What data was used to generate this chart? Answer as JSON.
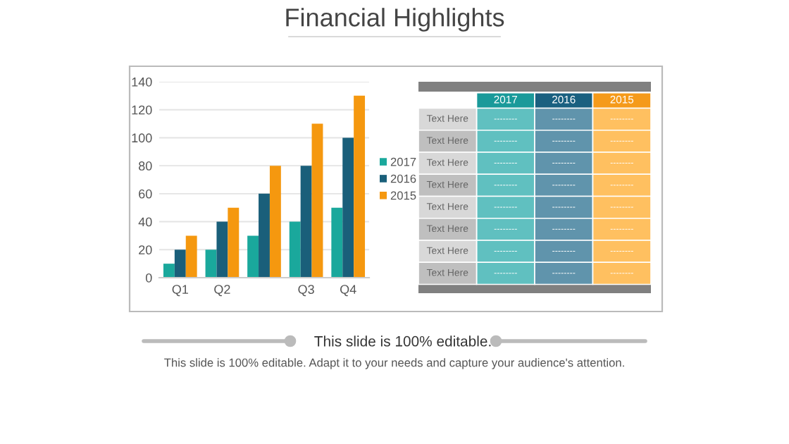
{
  "chart_data": [
    {
      "type": "bar",
      "title": "Financial Highlights",
      "categories": [
        "Q1",
        "Q2",
        null,
        "Q3",
        "Q4"
      ],
      "series": [
        {
          "name": "2017",
          "color": "#1aa89c",
          "values": [
            10,
            20,
            30,
            40,
            50
          ]
        },
        {
          "name": "2016",
          "color": "#1a5f7a",
          "values": [
            20,
            40,
            60,
            80,
            100
          ]
        },
        {
          "name": "2015",
          "color": "#f5980f",
          "values": [
            30,
            50,
            80,
            110,
            130
          ]
        }
      ],
      "ylim": [
        0,
        140
      ],
      "yticks": [
        0,
        20,
        40,
        60,
        80,
        100,
        120,
        140
      ],
      "grid": "y",
      "legend": "right",
      "annotations": [
        "This slide is 100% editable.",
        "This slide is 100% editable. Adapt it to your needs and capture your audience's attention."
      ]
    },
    {
      "type": "other",
      "categories": [
        "2017",
        "2016",
        "2015"
      ],
      "colors": [
        "#1a9a9a",
        "#1a6080",
        "#f59a1a"
      ],
      "y_categories": [
        "Text Here",
        "Text Here",
        "Text Here",
        "Text Here",
        "Text Here",
        "Text Here",
        "Text Here",
        "Text Here"
      ],
      "cell_labels": [
        [
          "--------",
          "--------",
          "--------"
        ],
        [
          "--------",
          "--------",
          "--------"
        ],
        [
          "--------",
          "--------",
          "--------"
        ],
        [
          "--------",
          "--------",
          "--------"
        ],
        [
          "--------",
          "--------",
          "--------"
        ],
        [
          "--------",
          "--------",
          "--------"
        ],
        [
          "--------",
          "--------",
          "--------"
        ],
        [
          "--------",
          "--------",
          "--------"
        ]
      ]
    }
  ]
}
